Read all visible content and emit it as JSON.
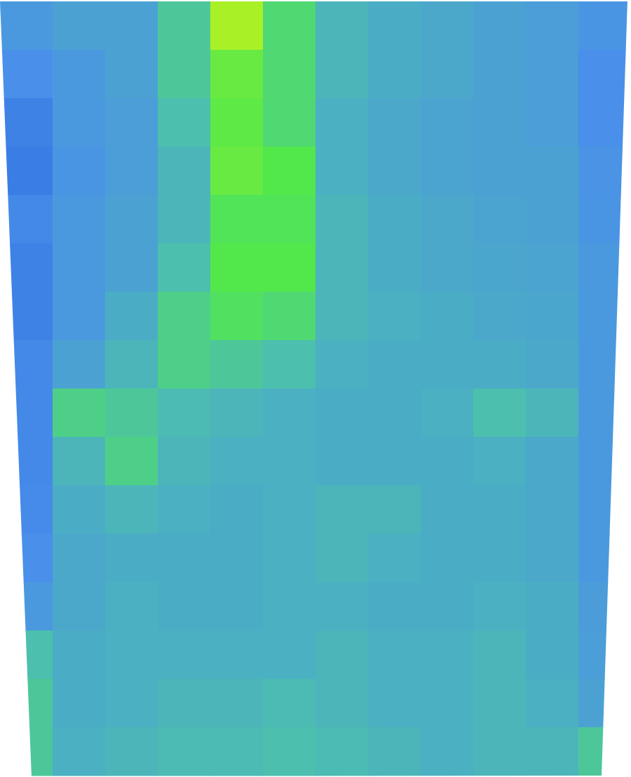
{
  "chart_data": {
    "type": "heatmap",
    "tick_labels": false,
    "zlim": [
      0,
      1
    ],
    "cells": [
      [
        0.3,
        0.35,
        0.35,
        0.55,
        0.95,
        0.65,
        0.45,
        0.4,
        0.38,
        0.35,
        0.33,
        0.28
      ],
      [
        0.25,
        0.3,
        0.35,
        0.55,
        0.8,
        0.65,
        0.45,
        0.4,
        0.38,
        0.35,
        0.33,
        0.25
      ],
      [
        0.15,
        0.3,
        0.33,
        0.5,
        0.78,
        0.65,
        0.42,
        0.38,
        0.36,
        0.35,
        0.33,
        0.25
      ],
      [
        0.12,
        0.28,
        0.33,
        0.45,
        0.8,
        0.75,
        0.42,
        0.38,
        0.36,
        0.35,
        0.35,
        0.27
      ],
      [
        0.2,
        0.3,
        0.35,
        0.45,
        0.72,
        0.72,
        0.45,
        0.4,
        0.38,
        0.36,
        0.35,
        0.28
      ],
      [
        0.15,
        0.3,
        0.35,
        0.5,
        0.75,
        0.75,
        0.45,
        0.4,
        0.38,
        0.37,
        0.36,
        0.3
      ],
      [
        0.15,
        0.3,
        0.4,
        0.6,
        0.7,
        0.65,
        0.45,
        0.42,
        0.4,
        0.38,
        0.37,
        0.3
      ],
      [
        0.2,
        0.35,
        0.45,
        0.6,
        0.55,
        0.5,
        0.42,
        0.4,
        0.4,
        0.4,
        0.38,
        0.3
      ],
      [
        0.2,
        0.6,
        0.55,
        0.48,
        0.45,
        0.42,
        0.4,
        0.4,
        0.42,
        0.5,
        0.45,
        0.3
      ],
      [
        0.2,
        0.45,
        0.6,
        0.45,
        0.42,
        0.42,
        0.4,
        0.4,
        0.4,
        0.42,
        0.38,
        0.3
      ],
      [
        0.22,
        0.4,
        0.45,
        0.42,
        0.4,
        0.42,
        0.45,
        0.45,
        0.4,
        0.4,
        0.38,
        0.3
      ],
      [
        0.25,
        0.38,
        0.4,
        0.4,
        0.4,
        0.42,
        0.45,
        0.42,
        0.4,
        0.4,
        0.38,
        0.3
      ],
      [
        0.3,
        0.38,
        0.42,
        0.4,
        0.4,
        0.42,
        0.42,
        0.4,
        0.4,
        0.42,
        0.4,
        0.32
      ],
      [
        0.5,
        0.4,
        0.42,
        0.42,
        0.42,
        0.42,
        0.45,
        0.42,
        0.42,
        0.45,
        0.4,
        0.33
      ],
      [
        0.55,
        0.4,
        0.42,
        0.45,
        0.45,
        0.48,
        0.45,
        0.42,
        0.42,
        0.45,
        0.42,
        0.35
      ],
      [
        0.55,
        0.42,
        0.45,
        0.48,
        0.48,
        0.5,
        0.48,
        0.45,
        0.42,
        0.45,
        0.45,
        0.55
      ]
    ]
  }
}
